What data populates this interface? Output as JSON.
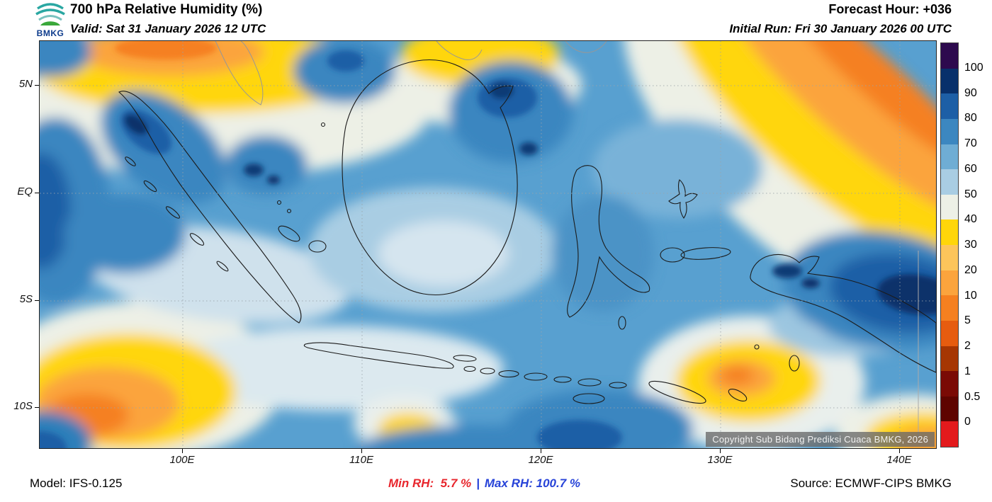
{
  "header": {
    "logo_text": "BMKG",
    "title": "700 hPa Relative Humidity (%)",
    "valid_label": "Valid: Sat 31 January 2026 12 UTC",
    "forecast_hour_label": "Forecast Hour: +036",
    "initial_run_label": "Initial Run: Fri 30 January 2026 00 UTC"
  },
  "map": {
    "y_ticks": [
      "5N",
      "EQ",
      "5S",
      "10S"
    ],
    "x_ticks": [
      "100E",
      "110E",
      "120E",
      "130E",
      "140E"
    ],
    "copyright": "Copyright Sub Bidang Prediksi Cuaca BMKG, 2026"
  },
  "colorbar": {
    "unit": "%",
    "labels": [
      "100",
      "90",
      "80",
      "70",
      "60",
      "50",
      "40",
      "30",
      "20",
      "10",
      "5",
      "2",
      "1",
      "0.5",
      "0"
    ],
    "colors": [
      "#2d0a4e",
      "#08306b",
      "#1d5fa6",
      "#3c87c0",
      "#6fadd4",
      "#a9cde3",
      "#edf0e6",
      "#ffd60a",
      "#fdc55b",
      "#fba43d",
      "#f58020",
      "#e65c0f",
      "#a63603",
      "#7a0a05",
      "#5e0400",
      "#e31a1c"
    ]
  },
  "footer": {
    "model_label": "Model: IFS-0.125",
    "min_rh_label": "Min RH:  5.7 %",
    "separator": "|",
    "max_rh_label": "Max RH: 100.7 %",
    "source_label": "Source: ECMWF-CIPS BMKG"
  }
}
